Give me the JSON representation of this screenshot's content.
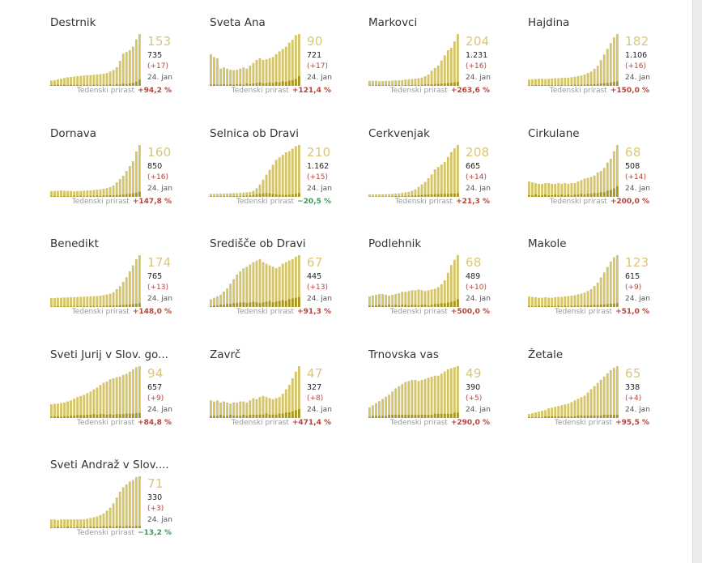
{
  "growth_label": "Tedenski prirast",
  "colors": {
    "light_bar": "#d4c46a",
    "dark_bar": "#a89620",
    "big_number": "#d9c679",
    "positive": "#b4443a",
    "negative": "#3a9a5c"
  },
  "chart_data": [
    {
      "type": "bar",
      "title": "Destrnik",
      "current": "153",
      "total": "735",
      "delta": "(+17)",
      "date": "24. jan",
      "growth": "+94,2 %",
      "trend": "up",
      "values": [
        15,
        16,
        18,
        20,
        22,
        24,
        25,
        26,
        27,
        28,
        29,
        30,
        30,
        31,
        32,
        33,
        34,
        36,
        40,
        44,
        52,
        70,
        90,
        95,
        100,
        110,
        130,
        145
      ],
      "new": [
        2,
        2,
        3,
        2,
        3,
        2,
        3,
        2,
        3,
        2,
        3,
        3,
        2,
        3,
        3,
        2,
        3,
        3,
        4,
        3,
        5,
        4,
        6,
        5,
        7,
        8,
        12,
        17
      ]
    },
    {
      "type": "bar",
      "title": "Sveta Ana",
      "current": "90",
      "total": "721",
      "delta": "(+17)",
      "date": "24. jan",
      "growth": "+121,4 %",
      "trend": "up",
      "values": [
        55,
        50,
        48,
        30,
        32,
        30,
        28,
        27,
        28,
        30,
        32,
        30,
        35,
        40,
        45,
        48,
        45,
        46,
        48,
        50,
        55,
        60,
        64,
        68,
        75,
        80,
        88,
        90
      ],
      "new": [
        2,
        3,
        2,
        2,
        3,
        2,
        3,
        2,
        3,
        3,
        2,
        4,
        3,
        4,
        5,
        6,
        4,
        5,
        6,
        5,
        7,
        6,
        8,
        7,
        9,
        10,
        12,
        17
      ]
    },
    {
      "type": "bar",
      "title": "Markovci",
      "current": "204",
      "total": "1.231",
      "delta": "(+16)",
      "date": "24. jan",
      "growth": "+263,6 %",
      "trend": "up",
      "values": [
        20,
        20,
        20,
        18,
        19,
        20,
        20,
        21,
        22,
        22,
        23,
        25,
        26,
        27,
        28,
        30,
        33,
        38,
        45,
        60,
        70,
        80,
        100,
        120,
        140,
        150,
        175,
        204
      ],
      "new": [
        2,
        2,
        2,
        3,
        2,
        2,
        3,
        2,
        3,
        3,
        2,
        3,
        3,
        3,
        4,
        3,
        4,
        5,
        6,
        6,
        7,
        8,
        9,
        10,
        11,
        12,
        14,
        16
      ]
    },
    {
      "type": "bar",
      "title": "Hajdina",
      "current": "182",
      "total": "1.106",
      "delta": "(+16)",
      "date": "24. jan",
      "growth": "+150,0 %",
      "trend": "up",
      "values": [
        22,
        23,
        24,
        25,
        25,
        24,
        25,
        26,
        27,
        27,
        28,
        28,
        29,
        30,
        32,
        34,
        36,
        40,
        45,
        50,
        60,
        70,
        90,
        110,
        130,
        150,
        170,
        182
      ],
      "new": [
        2,
        2,
        3,
        2,
        3,
        2,
        3,
        3,
        2,
        3,
        3,
        2,
        3,
        3,
        4,
        3,
        4,
        4,
        5,
        5,
        6,
        7,
        8,
        9,
        10,
        12,
        14,
        16
      ]
    },
    {
      "type": "bar",
      "title": "Dornava",
      "current": "160",
      "total": "850",
      "delta": "(+16)",
      "date": "24. jan",
      "growth": "+147,8 %",
      "trend": "up",
      "values": [
        18,
        18,
        19,
        20,
        19,
        18,
        18,
        17,
        18,
        18,
        19,
        20,
        20,
        21,
        22,
        23,
        25,
        27,
        30,
        35,
        45,
        55,
        65,
        80,
        95,
        110,
        140,
        160
      ],
      "new": [
        2,
        3,
        2,
        2,
        3,
        2,
        2,
        3,
        2,
        3,
        2,
        3,
        3,
        3,
        4,
        3,
        4,
        4,
        5,
        5,
        6,
        6,
        7,
        8,
        9,
        11,
        13,
        16
      ]
    },
    {
      "type": "bar",
      "title": "Selnica ob Dravi",
      "current": "210",
      "total": "1.162",
      "delta": "(+15)",
      "date": "24. jan",
      "growth": "−20,5 %",
      "trend": "down",
      "values": [
        12,
        12,
        12,
        13,
        13,
        14,
        14,
        15,
        15,
        16,
        17,
        18,
        20,
        25,
        35,
        50,
        70,
        90,
        110,
        130,
        150,
        160,
        170,
        180,
        185,
        195,
        205,
        210
      ],
      "new": [
        2,
        2,
        2,
        2,
        3,
        2,
        3,
        3,
        3,
        3,
        4,
        5,
        6,
        8,
        10,
        12,
        14,
        15,
        14,
        12,
        10,
        9,
        8,
        8,
        9,
        10,
        12,
        15
      ]
    },
    {
      "type": "bar",
      "title": "Cerkvenjak",
      "current": "208",
      "total": "665",
      "delta": "(+14)",
      "date": "24. jan",
      "growth": "+21,3 %",
      "trend": "up",
      "values": [
        10,
        10,
        10,
        10,
        10,
        11,
        11,
        12,
        13,
        14,
        16,
        18,
        20,
        24,
        30,
        40,
        50,
        60,
        75,
        90,
        110,
        120,
        130,
        140,
        160,
        180,
        195,
        208
      ],
      "new": [
        1,
        1,
        2,
        1,
        2,
        1,
        2,
        2,
        3,
        3,
        3,
        4,
        4,
        5,
        6,
        7,
        8,
        9,
        10,
        10,
        11,
        11,
        12,
        12,
        12,
        13,
        13,
        14
      ]
    },
    {
      "type": "bar",
      "title": "Cirkulane",
      "current": "68",
      "total": "508",
      "delta": "(+14)",
      "date": "24. jan",
      "growth": "+200,0 %",
      "trend": "up",
      "values": [
        20,
        19,
        18,
        17,
        17,
        18,
        18,
        17,
        17,
        18,
        17,
        18,
        17,
        18,
        18,
        20,
        22,
        24,
        25,
        26,
        28,
        32,
        34,
        38,
        45,
        50,
        60,
        68
      ],
      "new": [
        2,
        2,
        3,
        2,
        2,
        3,
        2,
        2,
        3,
        2,
        3,
        2,
        3,
        2,
        3,
        3,
        4,
        3,
        4,
        4,
        5,
        5,
        6,
        6,
        8,
        9,
        11,
        14
      ]
    },
    {
      "type": "bar",
      "title": "Benedikt",
      "current": "174",
      "total": "765",
      "delta": "(+13)",
      "date": "24. jan",
      "growth": "+148,0 %",
      "trend": "up",
      "values": [
        30,
        30,
        31,
        31,
        32,
        32,
        33,
        33,
        34,
        34,
        35,
        35,
        36,
        36,
        37,
        38,
        40,
        42,
        45,
        50,
        60,
        70,
        85,
        100,
        120,
        140,
        160,
        174
      ],
      "new": [
        2,
        2,
        3,
        2,
        3,
        2,
        3,
        2,
        3,
        2,
        3,
        3,
        3,
        3,
        3,
        3,
        4,
        4,
        4,
        5,
        5,
        6,
        7,
        8,
        9,
        10,
        11,
        13
      ]
    },
    {
      "type": "bar",
      "title": "Središče ob Dravi",
      "current": "67",
      "total": "445",
      "delta": "(+13)",
      "date": "24. jan",
      "growth": "+91,3 %",
      "trend": "up",
      "values": [
        10,
        12,
        14,
        16,
        20,
        24,
        30,
        36,
        42,
        46,
        50,
        52,
        55,
        58,
        60,
        62,
        58,
        56,
        54,
        52,
        50,
        52,
        56,
        58,
        60,
        62,
        65,
        67
      ],
      "new": [
        1,
        2,
        2,
        3,
        3,
        4,
        4,
        5,
        5,
        6,
        6,
        5,
        6,
        7,
        6,
        5,
        6,
        7,
        8,
        6,
        7,
        8,
        9,
        8,
        10,
        11,
        12,
        13
      ]
    },
    {
      "type": "bar",
      "title": "Podlehnik",
      "current": "68",
      "total": "489",
      "delta": "(+10)",
      "date": "24. jan",
      "growth": "+500,0 %",
      "trend": "up",
      "values": [
        14,
        15,
        16,
        17,
        17,
        16,
        15,
        16,
        17,
        18,
        20,
        20,
        21,
        22,
        22,
        23,
        22,
        21,
        22,
        23,
        24,
        26,
        30,
        35,
        45,
        55,
        62,
        68
      ],
      "new": [
        2,
        2,
        2,
        3,
        2,
        2,
        3,
        2,
        3,
        2,
        3,
        3,
        2,
        3,
        3,
        2,
        3,
        3,
        2,
        3,
        4,
        4,
        5,
        5,
        6,
        7,
        8,
        10
      ]
    },
    {
      "type": "bar",
      "title": "Makole",
      "current": "123",
      "total": "615",
      "delta": "(+9)",
      "date": "24. jan",
      "growth": "+51,0 %",
      "trend": "up",
      "values": [
        25,
        24,
        23,
        22,
        22,
        23,
        22,
        22,
        23,
        24,
        24,
        25,
        26,
        27,
        28,
        30,
        32,
        34,
        38,
        42,
        50,
        58,
        70,
        82,
        95,
        108,
        118,
        123
      ],
      "new": [
        2,
        2,
        2,
        3,
        2,
        2,
        3,
        2,
        2,
        3,
        2,
        3,
        2,
        3,
        3,
        3,
        3,
        4,
        4,
        4,
        5,
        5,
        6,
        6,
        7,
        8,
        8,
        9
      ]
    },
    {
      "type": "bar",
      "title": "Sveti Jurij v Slov. go...",
      "current": "94",
      "total": "657",
      "delta": "(+9)",
      "date": "24. jan",
      "growth": "+84,8 %",
      "trend": "up",
      "values": [
        25,
        26,
        26,
        27,
        28,
        30,
        32,
        35,
        38,
        40,
        42,
        45,
        48,
        52,
        55,
        60,
        64,
        66,
        70,
        72,
        74,
        75,
        78,
        80,
        84,
        88,
        92,
        94
      ],
      "new": [
        2,
        3,
        3,
        2,
        3,
        3,
        4,
        4,
        5,
        5,
        5,
        6,
        6,
        7,
        6,
        7,
        7,
        6,
        7,
        6,
        7,
        7,
        7,
        8,
        8,
        8,
        9,
        9
      ]
    },
    {
      "type": "bar",
      "title": "Zavrč",
      "current": "47",
      "total": "327",
      "delta": "(+8)",
      "date": "24. jan",
      "growth": "+471,4 %",
      "trend": "up",
      "values": [
        16,
        15,
        16,
        14,
        15,
        14,
        13,
        14,
        14,
        15,
        15,
        14,
        16,
        18,
        17,
        19,
        20,
        19,
        18,
        17,
        18,
        19,
        22,
        26,
        30,
        36,
        42,
        47
      ],
      "new": [
        2,
        2,
        2,
        3,
        2,
        2,
        3,
        2,
        2,
        2,
        3,
        2,
        3,
        3,
        3,
        3,
        3,
        4,
        3,
        3,
        3,
        4,
        4,
        5,
        5,
        6,
        7,
        8
      ]
    },
    {
      "type": "bar",
      "title": "Trnovska vas",
      "current": "49",
      "total": "390",
      "delta": "(+5)",
      "date": "24. jan",
      "growth": "+290,0 %",
      "trend": "up",
      "values": [
        10,
        12,
        14,
        16,
        18,
        20,
        22,
        25,
        28,
        30,
        32,
        34,
        35,
        36,
        36,
        35,
        36,
        37,
        38,
        39,
        40,
        40,
        42,
        44,
        46,
        47,
        48,
        49
      ],
      "new": [
        1,
        2,
        2,
        2,
        2,
        2,
        3,
        3,
        3,
        3,
        3,
        3,
        3,
        3,
        3,
        3,
        3,
        3,
        3,
        3,
        4,
        4,
        4,
        4,
        4,
        4,
        5,
        5
      ]
    },
    {
      "type": "bar",
      "title": "Žetale",
      "current": "65",
      "total": "338",
      "delta": "(+4)",
      "date": "24. jan",
      "growth": "+95,5 %",
      "trend": "up",
      "values": [
        5,
        6,
        7,
        8,
        9,
        10,
        12,
        13,
        14,
        15,
        16,
        17,
        18,
        20,
        22,
        24,
        26,
        28,
        32,
        36,
        40,
        44,
        48,
        52,
        56,
        60,
        63,
        65
      ],
      "new": [
        1,
        1,
        1,
        1,
        1,
        2,
        2,
        2,
        2,
        2,
        2,
        2,
        2,
        2,
        2,
        3,
        3,
        3,
        3,
        3,
        3,
        3,
        3,
        4,
        4,
        4,
        4,
        4
      ]
    },
    {
      "type": "bar",
      "title": "Sveti Andraž v Slov....",
      "current": "71",
      "total": "330",
      "delta": "(+3)",
      "date": "24. jan",
      "growth": "−13,2 %",
      "trend": "down",
      "values": [
        12,
        12,
        11,
        12,
        12,
        12,
        12,
        12,
        12,
        12,
        12,
        13,
        14,
        15,
        16,
        18,
        20,
        24,
        28,
        34,
        42,
        50,
        56,
        60,
        64,
        66,
        70,
        71
      ],
      "new": [
        1,
        1,
        2,
        1,
        1,
        2,
        1,
        1,
        2,
        1,
        2,
        1,
        2,
        2,
        2,
        2,
        3,
        2,
        3,
        2,
        3,
        3,
        2,
        3,
        3,
        2,
        3,
        3
      ]
    }
  ]
}
